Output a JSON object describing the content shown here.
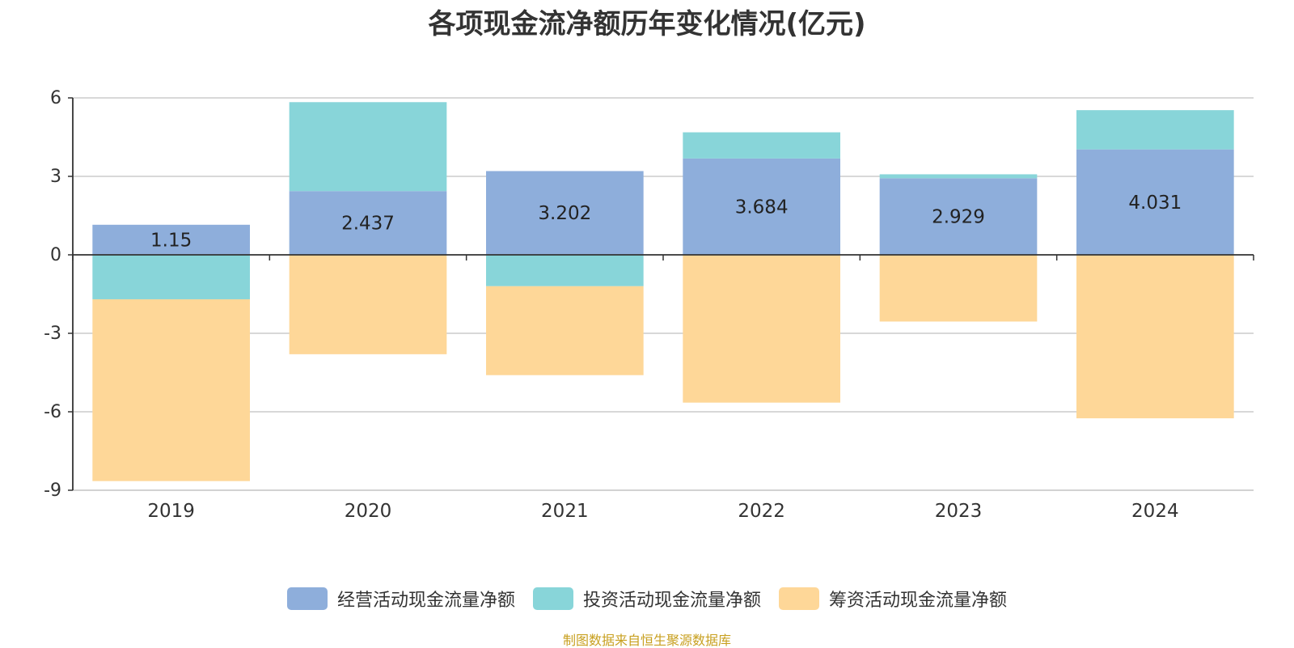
{
  "chart_data": {
    "type": "bar",
    "stacked": true,
    "title": "各项现金流净额历年变化情况(亿元)",
    "categories": [
      "2019",
      "2020",
      "2021",
      "2022",
      "2023",
      "2024"
    ],
    "ylim": [
      -9,
      6
    ],
    "yticks": [
      6,
      3,
      0,
      -3,
      -6,
      -9
    ],
    "grid": true,
    "legend_position": "bottom",
    "series": [
      {
        "name": "经营活动现金流量净额",
        "color": "#8eaedb",
        "values": [
          1.15,
          2.437,
          3.202,
          3.684,
          2.929,
          4.031
        ],
        "labels": [
          "1.15",
          "2.437",
          "3.202",
          "3.684",
          "2.929",
          "4.031"
        ]
      },
      {
        "name": "投资活动现金流量净额",
        "color": "#88d5d9",
        "values": [
          -1.7,
          3.4,
          -1.2,
          1.0,
          0.15,
          1.5
        ]
      },
      {
        "name": "筹资活动现金流量净额",
        "color": "#fed798",
        "values": [
          -6.95,
          -3.8,
          -3.4,
          -5.65,
          -2.55,
          -6.25
        ]
      }
    ],
    "source": "制图数据来自恒生聚源数据库"
  }
}
